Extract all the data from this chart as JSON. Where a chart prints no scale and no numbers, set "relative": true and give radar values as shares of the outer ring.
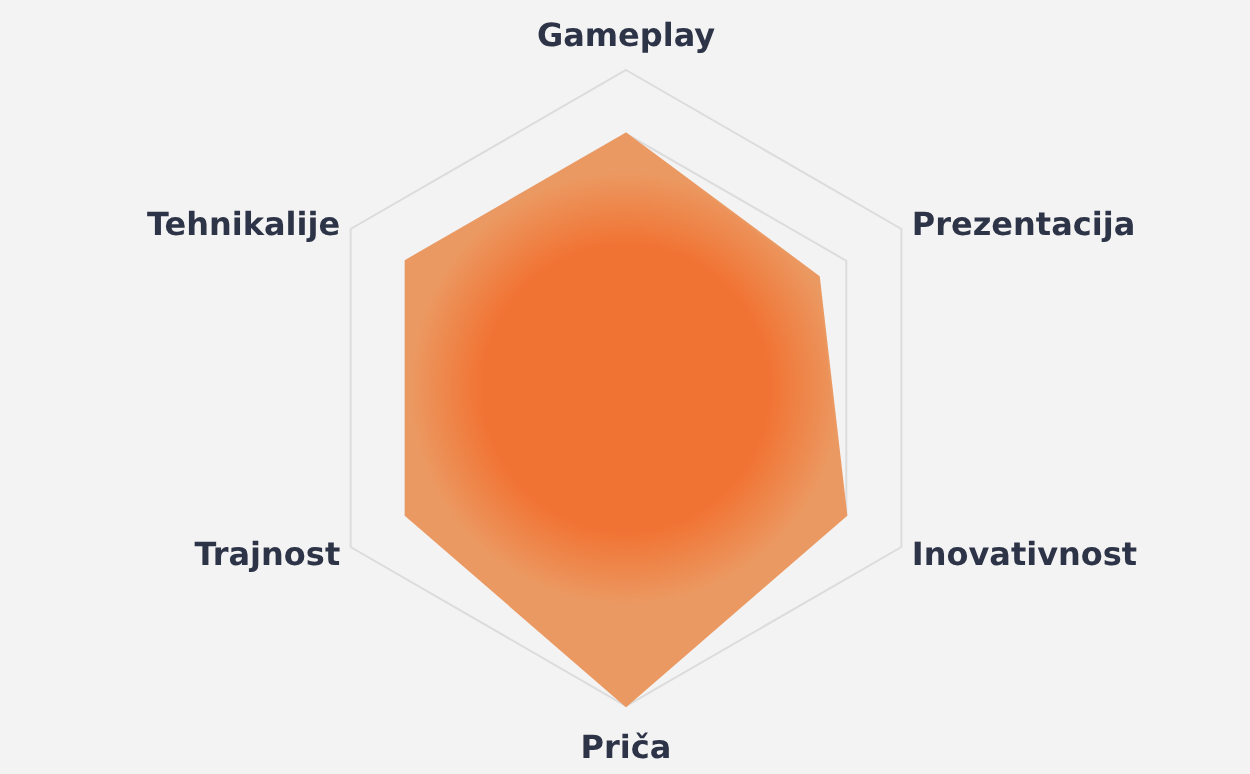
{
  "chart_data": {
    "type": "radar",
    "relative": true,
    "grid": true,
    "categories": [
      "Gameplay",
      "Prezentacija",
      "Inovativnost",
      "Priča",
      "Trajnost",
      "Tehnikalije"
    ],
    "series": [
      {
        "color": "#eb9962",
        "values": [
          0.8,
          0.7,
          0.8,
          1.0,
          0.8,
          0.8
        ]
      }
    ]
  }
}
